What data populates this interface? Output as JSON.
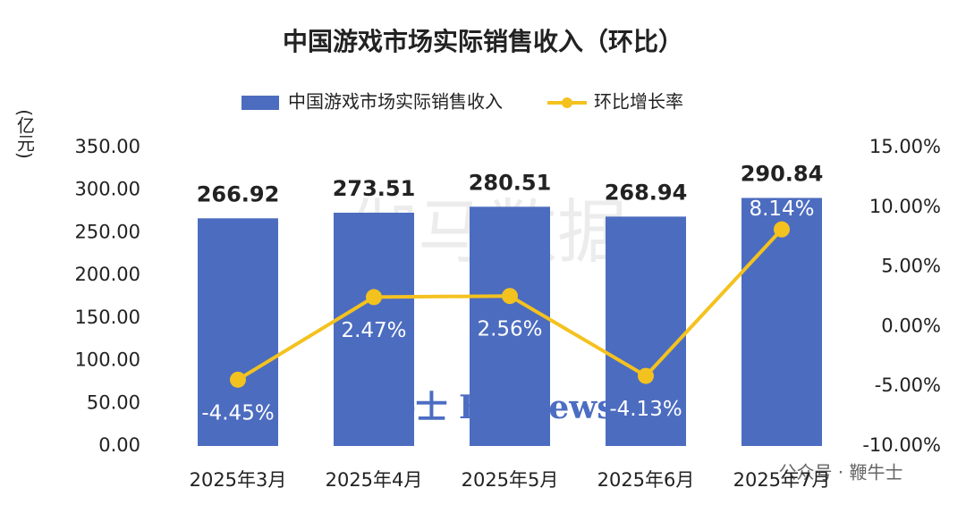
{
  "chart_data": {
    "type": "bar",
    "title": "中国游戏市场实际销售收入（环比）",
    "ylabel": "(亿元)",
    "categories": [
      "2025年3月",
      "2025年4月",
      "2025年5月",
      "2025年6月",
      "2025年7月"
    ],
    "series": [
      {
        "name": "中国游戏市场实际销售收入",
        "type": "bar",
        "color": "#4c6cbf",
        "values": [
          266.92,
          273.51,
          280.51,
          268.94,
          290.84
        ]
      },
      {
        "name": "环比增长率",
        "type": "line",
        "axis": "y2",
        "color": "#f4c21f",
        "values": [
          -4.45,
          2.47,
          2.56,
          -4.13,
          8.14
        ],
        "value_labels": [
          "-4.45%",
          "2.47%",
          "2.56%",
          "-4.13%",
          "8.14%"
        ]
      }
    ],
    "ylim": [
      0,
      350
    ],
    "yticks": [
      {
        "value": 0,
        "label": "0.00"
      },
      {
        "value": 50,
        "label": "50.00"
      },
      {
        "value": 100,
        "label": "100.00"
      },
      {
        "value": 150,
        "label": "150.00"
      },
      {
        "value": 200,
        "label": "200.00"
      },
      {
        "value": 250,
        "label": "250.00"
      },
      {
        "value": 300,
        "label": "300.00"
      },
      {
        "value": 350,
        "label": "350.00"
      }
    ],
    "y2lim": [
      -10,
      15
    ],
    "y2ticks": [
      {
        "value": -10,
        "label": "-10.00%"
      },
      {
        "value": -5,
        "label": "-5.00%"
      },
      {
        "value": 0,
        "label": "0.00%"
      },
      {
        "value": 5,
        "label": "5.00%"
      },
      {
        "value": 10,
        "label": "10.00%"
      },
      {
        "value": 15,
        "label": "15.00%"
      }
    ],
    "legend": "top",
    "annotations": [
      "伽马数据",
      "鞭牛士 BiaNews",
      "公众号 · 鞭牛士"
    ]
  }
}
